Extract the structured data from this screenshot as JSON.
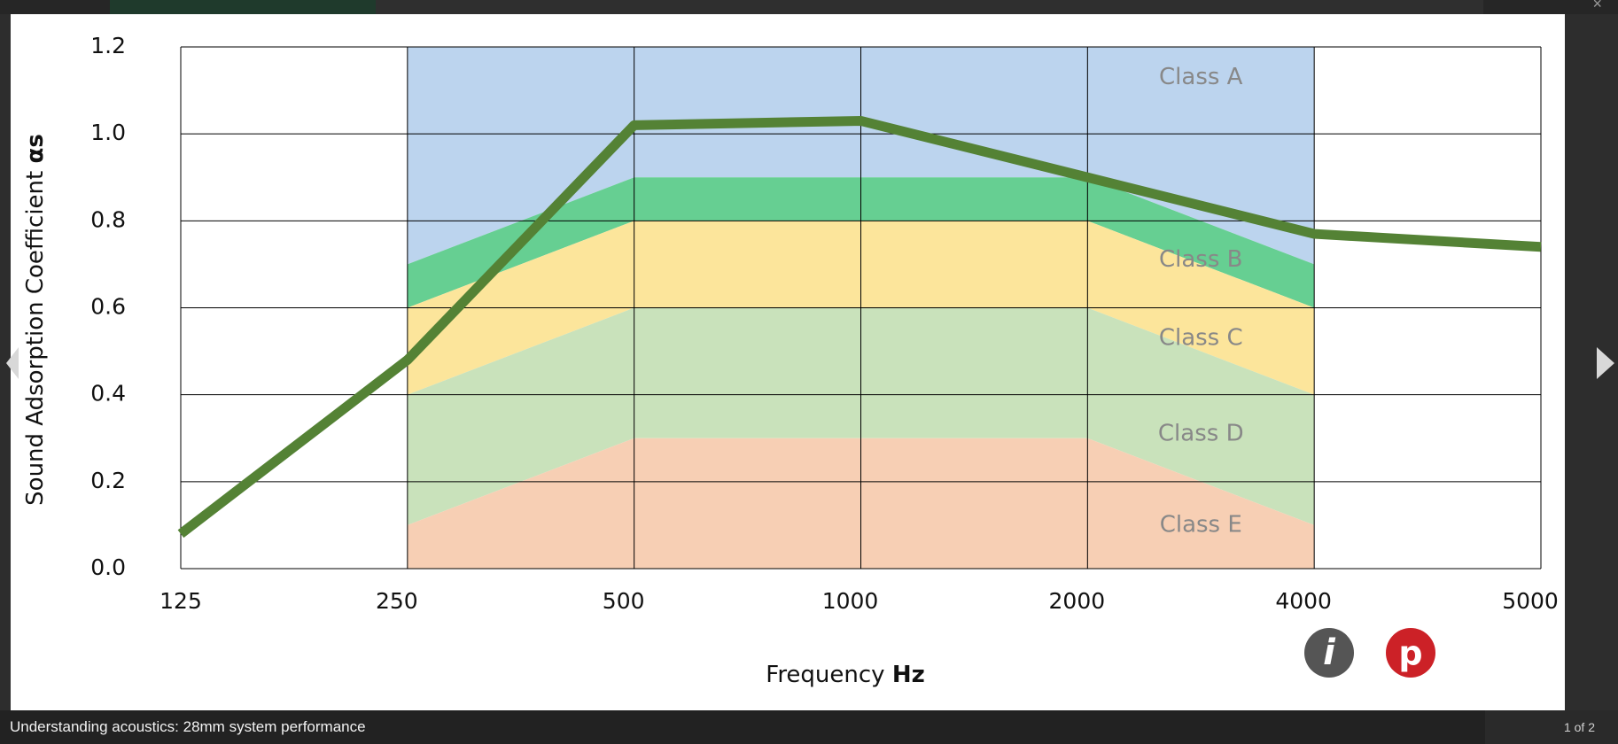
{
  "viewer": {
    "caption": "Understanding acoustics: 28mm system performance",
    "counter": "1 of 2",
    "info_icon": "info-icon",
    "pinterest_icon": "pinterest-icon",
    "pinterest_glyph": "p",
    "info_glyph": "i"
  },
  "chart_data": {
    "type": "line",
    "title": "",
    "xlabel_prefix": "Frequency",
    "xlabel_unit": "Hz",
    "ylabel_prefix": "Sound Adsorption Coefficient",
    "ylabel_symbol": "αs",
    "x_ticks": [
      "125",
      "250",
      "500",
      "1000",
      "2000",
      "4000",
      "5000"
    ],
    "y_ticks": [
      "0.0",
      "0.2",
      "0.4",
      "0.6",
      "0.8",
      "1.0",
      "1.2"
    ],
    "y_gridlines": [
      0,
      0.2,
      0.4,
      0.6,
      0.8,
      1.0,
      1.2
    ],
    "ylim": [
      0,
      1.2
    ],
    "grid": true,
    "series": [
      {
        "color": "#548235",
        "x": [
          "125",
          "250",
          "500",
          "1000",
          "2000",
          "4000",
          "5000"
        ],
        "values": [
          0.08,
          0.48,
          1.02,
          1.03,
          0.9,
          0.77,
          0.74
        ]
      }
    ],
    "class_bands": [
      {
        "label": "Class A",
        "color": "#bcd4ee",
        "lower": [
          0.7,
          0.9,
          0.9,
          0.9,
          0.7
        ],
        "upper": [
          1.2,
          1.2,
          1.2,
          1.2,
          1.2
        ]
      },
      {
        "label": "Class B",
        "color": "#66cf92",
        "lower": [
          0.6,
          0.8,
          0.8,
          0.8,
          0.6
        ],
        "upper": [
          0.7,
          0.9,
          0.9,
          0.9,
          0.7
        ]
      },
      {
        "label": "Class C",
        "color": "#fce59b",
        "lower": [
          0.4,
          0.6,
          0.6,
          0.6,
          0.4
        ],
        "upper": [
          0.6,
          0.8,
          0.8,
          0.8,
          0.6
        ]
      },
      {
        "label": "Class D",
        "color": "#c9e2bb",
        "lower": [
          0.1,
          0.3,
          0.3,
          0.3,
          0.1
        ],
        "upper": [
          0.4,
          0.6,
          0.6,
          0.6,
          0.4
        ]
      },
      {
        "label": "Class E",
        "color": "#f7cfb4",
        "lower": [
          0,
          0,
          0,
          0,
          0
        ],
        "upper": [
          0.1,
          0.3,
          0.3,
          0.3,
          0.1
        ]
      }
    ],
    "band_x": [
      "250",
      "500",
      "1000",
      "2000",
      "4000"
    ]
  }
}
